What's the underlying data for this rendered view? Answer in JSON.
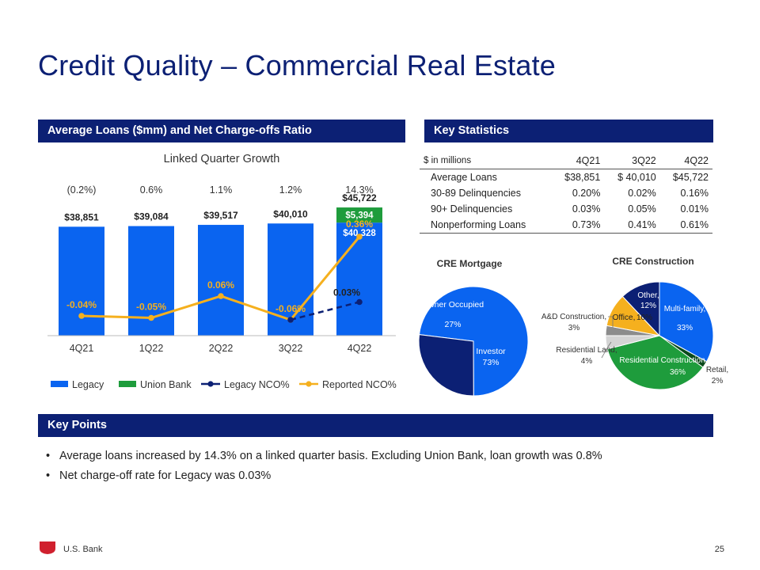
{
  "title": "Credit Quality – Commercial Real Estate",
  "section_loans": "Average Loans ($mm) and Net Charge-offs Ratio",
  "section_stats": "Key Statistics",
  "section_points": "Key Points",
  "colors": {
    "navy": "#0c2074",
    "blue": "#0a64f0",
    "green": "#1e9c3c",
    "gold": "#f5b01e"
  },
  "chart_data": [
    {
      "type": "bar",
      "title": "Linked Quarter Growth",
      "categories": [
        "4Q21",
        "1Q22",
        "2Q22",
        "3Q22",
        "4Q22"
      ],
      "growth_labels": [
        "(0.2%)",
        "0.6%",
        "1.1%",
        "1.2%",
        "14.3%"
      ],
      "series": [
        {
          "name": "Legacy",
          "values": [
            38851,
            39084,
            39517,
            40010,
            40328
          ],
          "labels": [
            "",
            "",
            "",
            "",
            "$40,328"
          ]
        },
        {
          "name": "Union Bank",
          "values": [
            0,
            0,
            0,
            0,
            5394
          ],
          "labels": [
            "",
            "",
            "",
            "",
            "$5,394"
          ]
        },
        {
          "name": "Legacy NCO%",
          "values": [
            null,
            null,
            null,
            -0.06,
            0.03
          ],
          "labels": [
            "",
            "",
            "",
            "",
            "0.03%"
          ]
        },
        {
          "name": "Reported NCO%",
          "values": [
            -0.04,
            -0.05,
            0.06,
            -0.06,
            0.36
          ],
          "labels": [
            "-0.04%",
            "-0.05%",
            "0.06%",
            "-0.06%",
            "0.36%"
          ]
        }
      ],
      "total_labels": [
        "$38,851",
        "$39,084",
        "$39,517",
        "$40,010",
        "$45,722"
      ],
      "ylim": [
        0,
        48000
      ],
      "nco_ylim": [
        -0.3,
        0.7
      ]
    },
    {
      "type": "pie",
      "title": "CRE Mortgage",
      "slices": [
        {
          "label": "Investor",
          "pct": "73%",
          "value": 73,
          "color": "#0a64f0"
        },
        {
          "label": "Owner Occupied",
          "pct": "27%",
          "value": 27,
          "color": "#0c2074"
        }
      ]
    },
    {
      "type": "pie",
      "title": "CRE Construction",
      "slices": [
        {
          "label": "Multi-family,",
          "pct": "33%",
          "value": 33,
          "color": "#0a64f0"
        },
        {
          "label": "Retail,",
          "pct": "2%",
          "value": 2,
          "color": "#0a4a1c"
        },
        {
          "label": "Residential Construction,",
          "pct": "36%",
          "value": 36,
          "color": "#1e9c3c"
        },
        {
          "label": "Residential Land,",
          "pct": "4%",
          "value": 4,
          "color": "#d4d4d4"
        },
        {
          "label": "A&D Construction,",
          "pct": "3%",
          "value": 3,
          "color": "#8c8c8c"
        },
        {
          "label": "Office,",
          "pct": "10%",
          "value": 10,
          "color": "#f5b01e"
        },
        {
          "label": "Other,",
          "pct": "12%",
          "value": 12,
          "color": "#0c2074"
        }
      ]
    }
  ],
  "stats_table": {
    "header": [
      "$ in millions",
      "4Q21",
      "3Q22",
      "4Q22"
    ],
    "rows": [
      [
        "Average Loans",
        "$38,851",
        "$ 40,010",
        "$45,722"
      ],
      [
        "30-89 Delinquencies",
        "0.20%",
        "0.02%",
        "0.16%"
      ],
      [
        "90+ Delinquencies",
        "0.03%",
        "0.05%",
        "0.01%"
      ],
      [
        "Nonperforming Loans",
        "0.73%",
        "0.41%",
        "0.61%"
      ]
    ]
  },
  "key_points": [
    "Average loans increased by 14.3% on a linked quarter basis.  Excluding Union Bank, loan growth was 0.8%",
    "Net charge-off rate for Legacy was 0.03%"
  ],
  "bullet": "•",
  "footer": {
    "brand": "U.S. Bank",
    "page": "25"
  }
}
